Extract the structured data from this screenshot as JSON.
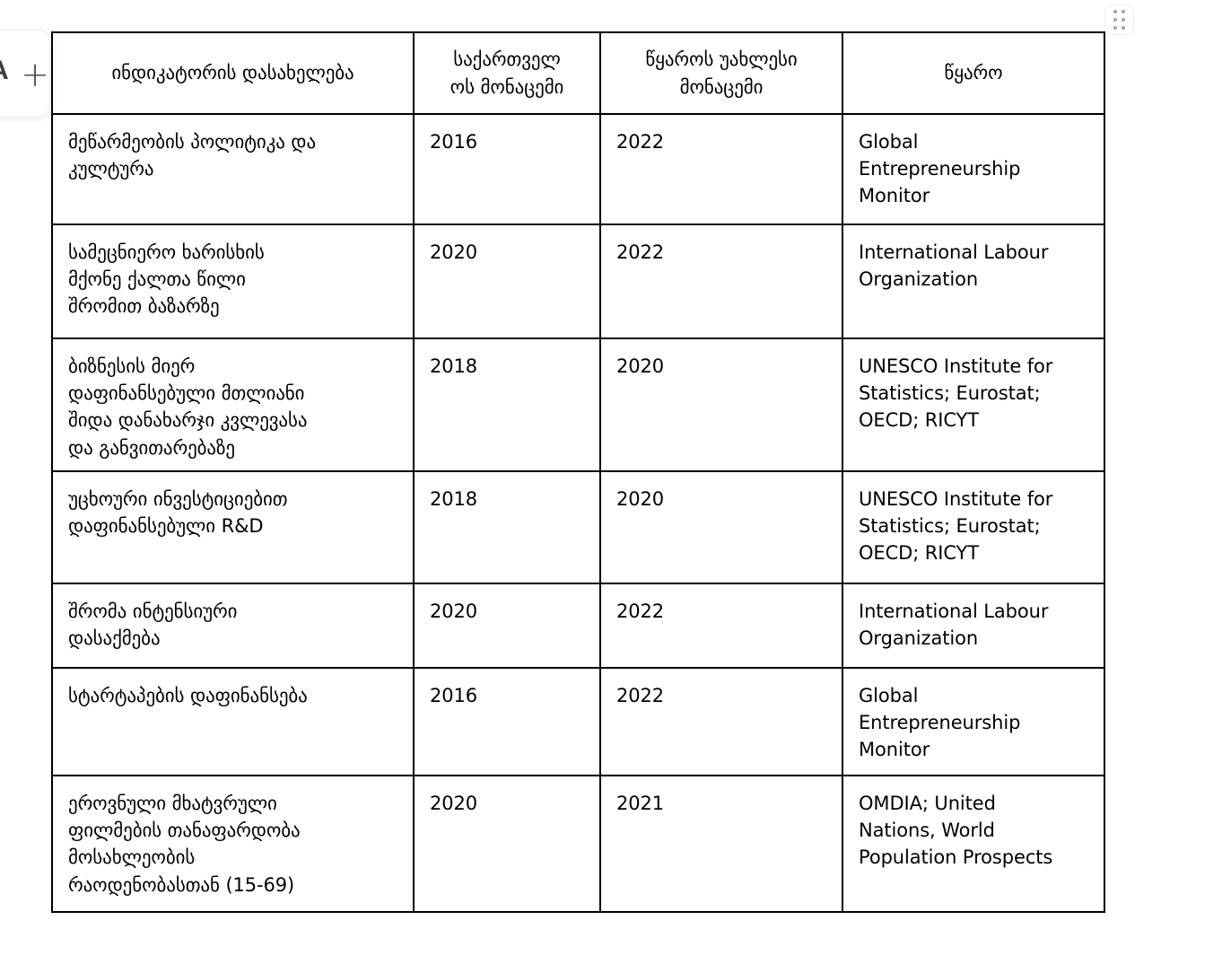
{
  "toolbar": {
    "partial_glyph": "A",
    "add_label": "+"
  },
  "colors": {
    "table_border": "#000000",
    "text": "#000000",
    "grip_dots": "#a3a3a3",
    "toolbar_border": "#ececec"
  },
  "table": {
    "headers": {
      "indicator": "ინდიკატორის დასახელება",
      "georgia_data": "საქართველ\nოს მონაცემი",
      "source_latest": "წყაროს უახლესი\nმონაცემი",
      "source": "წყარო"
    },
    "rows": [
      {
        "indicator": "მეწარმეობის პოლიტიკა და\nკულტურა",
        "georgia_data": "2016",
        "source_latest": "2022",
        "source": "Global\nEntrepreneurship\nMonitor"
      },
      {
        "indicator": "სამეცნიერო ხარისხის\nმქონე ქალთა წილი\nშრომით ბაზარზე",
        "georgia_data": "2020",
        "source_latest": "2022",
        "source": "International Labour\nOrganization"
      },
      {
        "indicator": "ბიზნესის მიერ\nდაფინანსებული მთლიანი\nშიდა დანახარჯი კვლევასა\nდა განვითარებაზე",
        "georgia_data": "2018",
        "source_latest": "2020",
        "source": "UNESCO Institute for\nStatistics; Eurostat;\nOECD; RICYT"
      },
      {
        "indicator": "უცხოური ინვესტიციებით\nდაფინანსებული R&D",
        "georgia_data": "2018",
        "source_latest": "2020",
        "source": "UNESCO Institute for\nStatistics; Eurostat;\nOECD; RICYT"
      },
      {
        "indicator": "შრომა ინტენსიური\nდასაქმება",
        "georgia_data": "2020",
        "source_latest": "2022",
        "source": "International Labour\nOrganization"
      },
      {
        "indicator": "სტარტაპების დაფინანსება",
        "georgia_data": "2016",
        "source_latest": "2022",
        "source": "Global\nEntrepreneurship\nMonitor"
      },
      {
        "indicator": "ეროვნული მხატვრული\nფილმების თანაფარდობა\nმოსახლეობის\nრაოდენობასთან (15-69)",
        "georgia_data": "2020",
        "source_latest": "2021",
        "source": "OMDIA; United\nNations, World\nPopulation Prospects"
      }
    ]
  }
}
